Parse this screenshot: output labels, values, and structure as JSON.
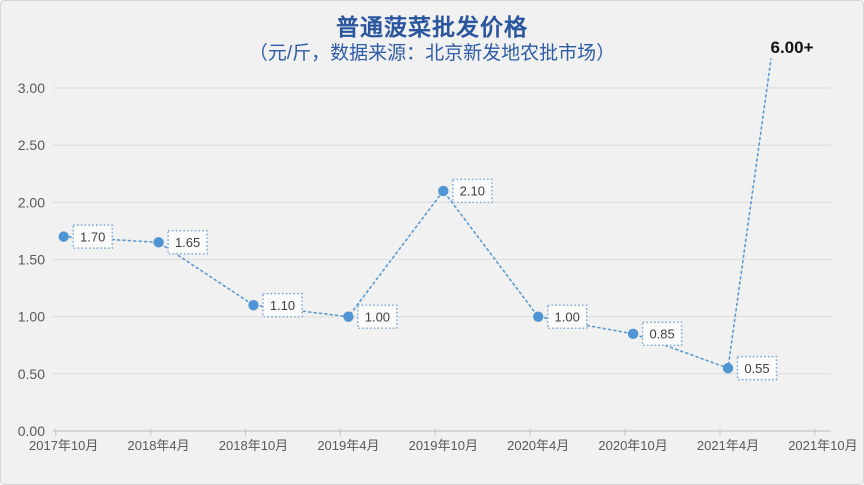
{
  "chart": {
    "background": "#f1f1f1",
    "border_color": "#d6d6d6",
    "title_color": "#2a56a0",
    "subtitle_color": "#2d5ca8",
    "series_color": "#5b9bd5",
    "marker_color": "#4f94d4",
    "label_box_border": "#77a7dc",
    "label_box_fill": "#fcfcfd",
    "label_text_color": "#3f3f3f",
    "axis_text_color": "#595959",
    "grid_color": "#dcdcdc",
    "axis_line_color": "#c6c6c6",
    "annotation_color": "#141414"
  },
  "chart_data": {
    "type": "line",
    "title": "普通菠菜批发价格",
    "subtitle": "（元/斤，数据来源：北京新发地农批市场）",
    "categories": [
      "2017年10月",
      "2018年4月",
      "2018年10月",
      "2019年4月",
      "2019年10月",
      "2020年4月",
      "2020年10月",
      "2021年4月",
      "2021年10月"
    ],
    "values": [
      1.7,
      1.65,
      1.1,
      1.0,
      2.1,
      1.0,
      0.85,
      0.55,
      null
    ],
    "data_labels": [
      "1.70",
      "1.65",
      "1.10",
      "1.00",
      "2.10",
      "1.00",
      "0.85",
      "0.55"
    ],
    "annotation": "6.00+",
    "ylim": [
      0,
      3
    ],
    "ytick_labels": [
      "0.00",
      "0.50",
      "1.00",
      "1.50",
      "2.00",
      "2.50",
      "3.00"
    ],
    "xlabel": "",
    "ylabel": "",
    "grid": true,
    "legend": "none",
    "line_style": "dotted",
    "marker": "circle"
  }
}
